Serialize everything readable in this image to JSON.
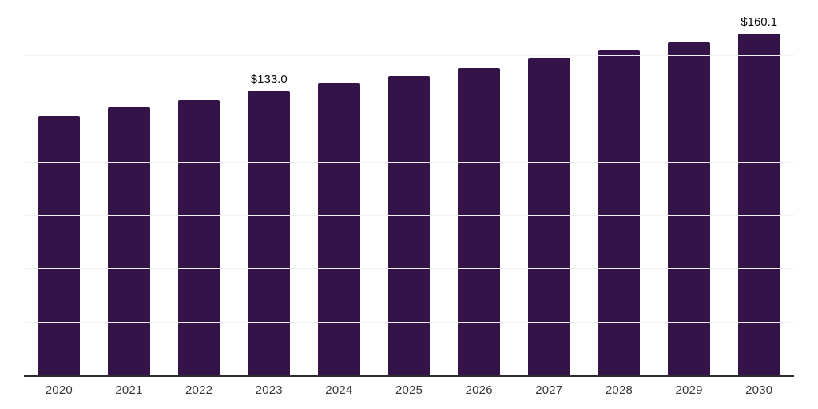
{
  "chart_data": {
    "type": "bar",
    "title": "",
    "xlabel": "",
    "ylabel": "",
    "categories": [
      "2020",
      "2021",
      "2022",
      "2023",
      "2024",
      "2025",
      "2026",
      "2027",
      "2028",
      "2029",
      "2030"
    ],
    "values": [
      121.7,
      125.6,
      128.9,
      133.0,
      136.7,
      140.4,
      144.1,
      148.6,
      152.3,
      156.0,
      160.1
    ],
    "data_labels": [
      "",
      "",
      "",
      "$133.0",
      "",
      "",
      "",
      "",
      "",
      "",
      "$160.1"
    ],
    "ylim": [
      0,
      175
    ],
    "gridline_interval": 25,
    "grid": "horizontal",
    "legend_position": "none",
    "colors": {
      "bar_fill": "#341349",
      "axis_line": "#2b2b2b",
      "gridline": "#f1f1f3",
      "tick_label": "#383838",
      "data_label": "#0a0a0a",
      "background": "#ffffff"
    }
  }
}
